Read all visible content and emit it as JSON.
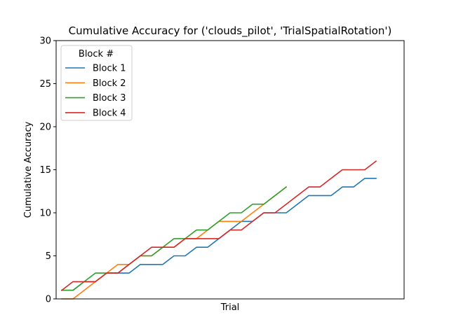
{
  "chart_data": {
    "type": "line",
    "title": "Cumulative Accuracy for ('clouds_pilot', 'TrialSpatialRotation')",
    "xlabel": "Trial",
    "ylabel": "Cumulative Accuracy",
    "xlim": [
      -0.5,
      30.5
    ],
    "ylim": [
      0,
      30
    ],
    "yticks": [
      0,
      5,
      10,
      15,
      20,
      25,
      30
    ],
    "grid": false,
    "legend": {
      "title": "Block #",
      "placement": "top-left"
    },
    "series": [
      {
        "name": "Block 1",
        "color": "#1f77b4",
        "x": [
          0,
          1,
          2,
          3,
          4,
          5,
          6,
          7,
          8,
          9,
          10,
          11,
          12,
          13,
          14,
          15,
          16,
          17,
          18,
          19,
          20,
          21,
          22,
          23,
          24,
          25,
          26,
          27,
          28
        ],
        "values": [
          1,
          1,
          2,
          2,
          3,
          3,
          3,
          4,
          4,
          4,
          5,
          5,
          6,
          6,
          7,
          8,
          9,
          9,
          10,
          10,
          10,
          11,
          12,
          12,
          12,
          13,
          13,
          14,
          14
        ]
      },
      {
        "name": "Block 2",
        "color": "#ff7f0e",
        "x": [
          0,
          1,
          2,
          3,
          4,
          5,
          6,
          7,
          8,
          9,
          10,
          11,
          12,
          13,
          14,
          15,
          16,
          17,
          18,
          19,
          20
        ],
        "values": [
          0,
          0,
          1,
          2,
          3,
          4,
          4,
          5,
          5,
          6,
          6,
          7,
          7,
          8,
          9,
          9,
          9,
          10,
          11,
          12,
          13
        ]
      },
      {
        "name": "Block 3",
        "color": "#2ca02c",
        "x": [
          0,
          1,
          2,
          3,
          4,
          5,
          6,
          7,
          8,
          9,
          10,
          11,
          12,
          13,
          14,
          15,
          16,
          17,
          18,
          19,
          20
        ],
        "values": [
          1,
          1,
          2,
          3,
          3,
          3,
          4,
          5,
          5,
          6,
          7,
          7,
          8,
          8,
          9,
          10,
          10,
          11,
          11,
          12,
          13
        ]
      },
      {
        "name": "Block 4",
        "color": "#d62728",
        "x": [
          0,
          1,
          2,
          3,
          4,
          5,
          6,
          7,
          8,
          9,
          10,
          11,
          12,
          13,
          14,
          15,
          16,
          17,
          18,
          19,
          20,
          21,
          22,
          23,
          24,
          25,
          26,
          27,
          28
        ],
        "values": [
          1,
          2,
          2,
          2,
          3,
          3,
          4,
          5,
          6,
          6,
          6,
          7,
          7,
          7,
          7,
          8,
          8,
          9,
          10,
          10,
          11,
          12,
          13,
          13,
          14,
          15,
          15,
          15,
          16
        ]
      }
    ]
  }
}
